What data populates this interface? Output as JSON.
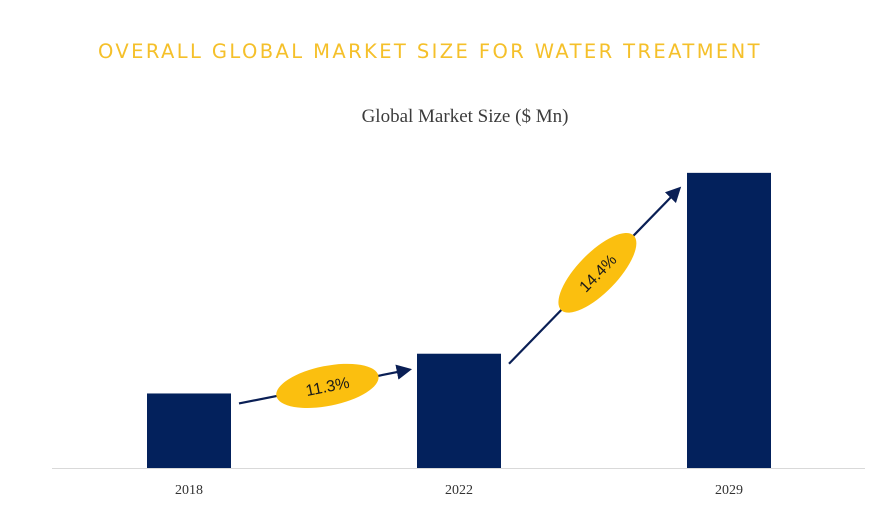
{
  "page": {
    "heading": "OVERALL GLOBAL MARKET SIZE FOR WATER TREATMENT"
  },
  "colors": {
    "heading": "#f5c02a",
    "bar": "#03215c",
    "annotation_fill": "#fbbf0f",
    "arrow": "#0a1f55",
    "axis": "#d9d9d9"
  },
  "chart_data": {
    "type": "bar",
    "title": "Global Market Size ($ Mn)",
    "categories": [
      "2018",
      "2022",
      "2029"
    ],
    "values": [
      75,
      115,
      297
    ],
    "ylim": [
      0,
      320
    ],
    "grid": false,
    "legend": "none",
    "annotations": [
      {
        "label": "11.3%",
        "from": "2018",
        "to": "2022"
      },
      {
        "label": "14.4%",
        "from": "2022",
        "to": "2029"
      }
    ]
  }
}
